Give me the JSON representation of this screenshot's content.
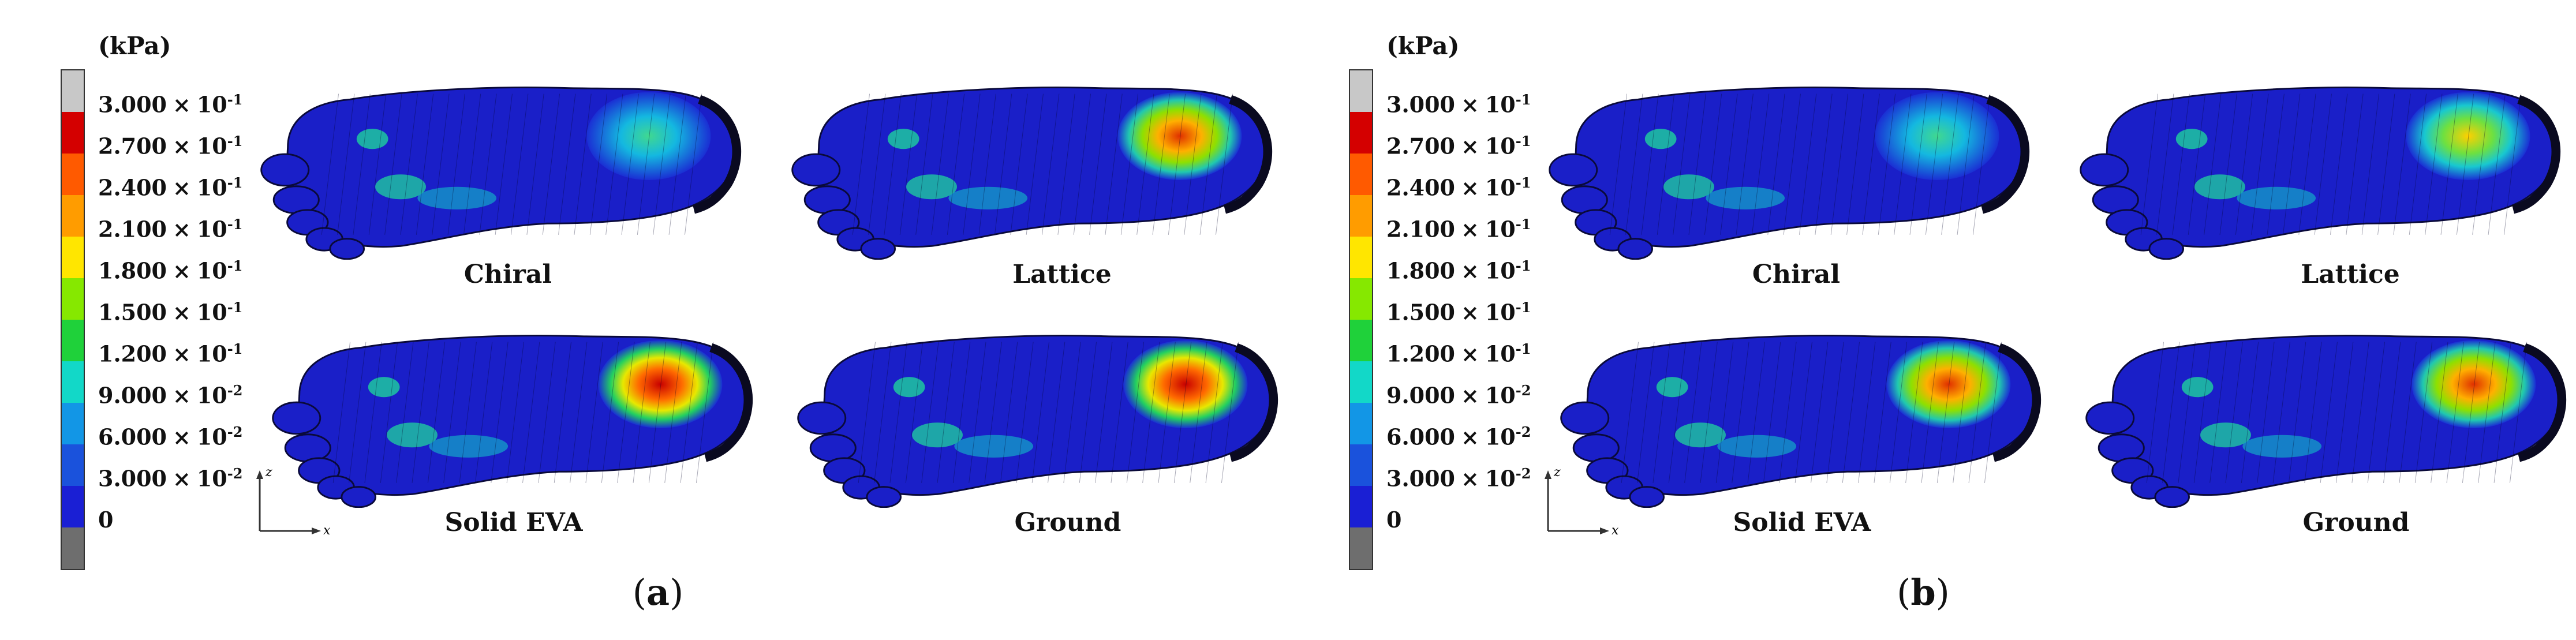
{
  "legend": {
    "unit": "(kPa)",
    "ticks": [
      {
        "m": "3.000",
        "e": "-1"
      },
      {
        "m": "2.700",
        "e": "-1"
      },
      {
        "m": "2.400",
        "e": "-1"
      },
      {
        "m": "2.100",
        "e": "-1"
      },
      {
        "m": "1.800",
        "e": "-1"
      },
      {
        "m": "1.500",
        "e": "-1"
      },
      {
        "m": "1.200",
        "e": "-1"
      },
      {
        "m": "9.000",
        "e": "-2"
      },
      {
        "m": "6.000",
        "e": "-2"
      },
      {
        "m": "3.000",
        "e": "-2"
      },
      {
        "m": "0",
        "e": ""
      }
    ],
    "colors": [
      "#c8c8c8",
      "#d40000",
      "#ff5a00",
      "#ff9c00",
      "#ffe600",
      "#86e800",
      "#1fd13a",
      "#12d8c8",
      "#1296e6",
      "#1a52dc",
      "#1a1fd4",
      "#6e6e6e"
    ],
    "times": "×"
  },
  "axis_labels": {
    "z": "z",
    "x": "x"
  },
  "panels": [
    {
      "label": "a",
      "feet": [
        {
          "name": "Chiral",
          "level": 0.55
        },
        {
          "name": "Lattice",
          "level": 0.85
        },
        {
          "name": "Solid EVA",
          "level": 1.0
        },
        {
          "name": "Ground",
          "level": 1.0
        }
      ]
    },
    {
      "label": "b",
      "feet": [
        {
          "name": "Chiral",
          "level": 0.45
        },
        {
          "name": "Lattice",
          "level": 0.7
        },
        {
          "name": "Solid EVA",
          "level": 0.9
        },
        {
          "name": "Ground",
          "level": 0.85
        }
      ]
    }
  ]
}
